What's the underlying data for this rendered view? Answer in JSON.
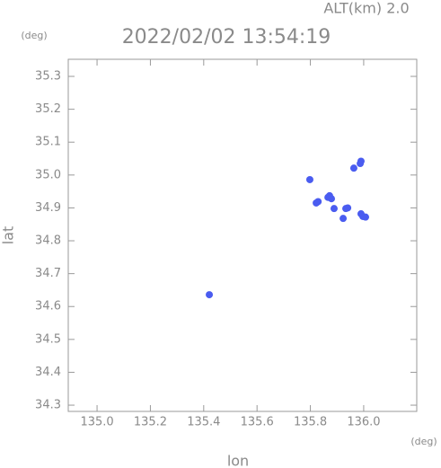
{
  "chart_data": {
    "type": "scatter",
    "title": "2022/02/02 13:54:19",
    "subtitle": "ALT(km) 2.0",
    "x_label": "lon",
    "y_label": "lat",
    "x_unit": "(deg)",
    "y_unit": "(deg)",
    "color": "#4a5cf0",
    "x": [
      135.987,
      135.99,
      135.963,
      135.798,
      135.866,
      135.879,
      135.872,
      135.822,
      135.829,
      135.889,
      135.933,
      135.94,
      135.997,
      136.007,
      135.99,
      135.923,
      135.421
    ],
    "values": [
      35.035,
      35.042,
      35.021,
      34.986,
      34.932,
      34.928,
      34.937,
      34.915,
      34.919,
      34.898,
      34.898,
      34.9,
      34.874,
      34.872,
      34.882,
      34.868,
      34.636
    ],
    "xlim": [
      134.892,
      136.199
    ],
    "ylim": [
      34.281,
      35.352
    ],
    "xticks": [
      {
        "value": 135,
        "label": "135.0"
      },
      135.2,
      135.4,
      135.6,
      135.8,
      {
        "value": 136,
        "label": "136.0"
      }
    ],
    "yticks": [
      34.3,
      34.4,
      34.5,
      34.6,
      34.7,
      34.8,
      34.9,
      {
        "value": 35,
        "label": "35.0"
      },
      35.1,
      35.2,
      35.3
    ]
  }
}
